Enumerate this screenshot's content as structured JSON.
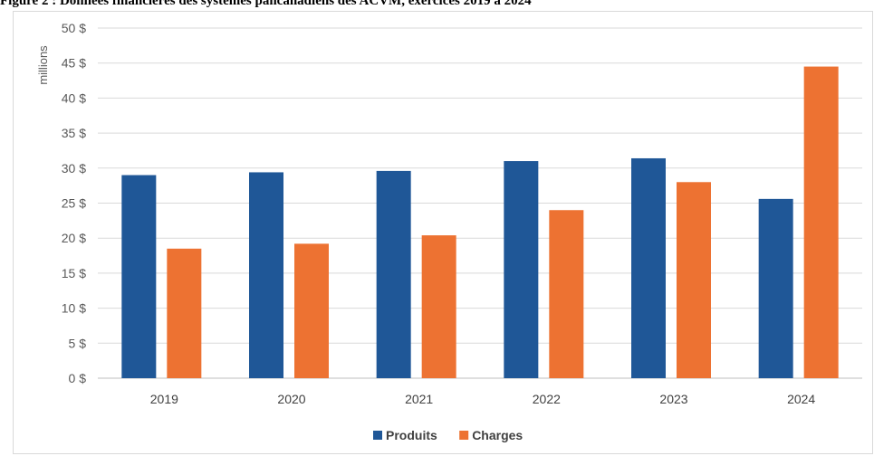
{
  "figure_title": "Figure 2 : Données financières des systèmes pancanadiens des ACVM, exercices 2019 à 2024",
  "chart_data": {
    "type": "bar",
    "title": "",
    "ylabel": "millions",
    "xlabel": "",
    "categories": [
      "2019",
      "2020",
      "2021",
      "2022",
      "2023",
      "2024"
    ],
    "series": [
      {
        "name": "Produits",
        "color": "#1f5797",
        "values": [
          29.0,
          29.4,
          29.6,
          31.0,
          31.4,
          25.6
        ]
      },
      {
        "name": "Charges",
        "color": "#ed7232",
        "values": [
          18.5,
          19.2,
          20.4,
          24.0,
          28.0,
          44.5
        ]
      }
    ],
    "ylim": [
      0,
      50
    ],
    "yticks": [
      "0 $",
      "5 $",
      "10 $",
      "15 $",
      "20 $",
      "25 $",
      "30 $",
      "35 $",
      "40 $",
      "45 $",
      "50 $"
    ],
    "grid": true,
    "legend_position": "bottom"
  }
}
